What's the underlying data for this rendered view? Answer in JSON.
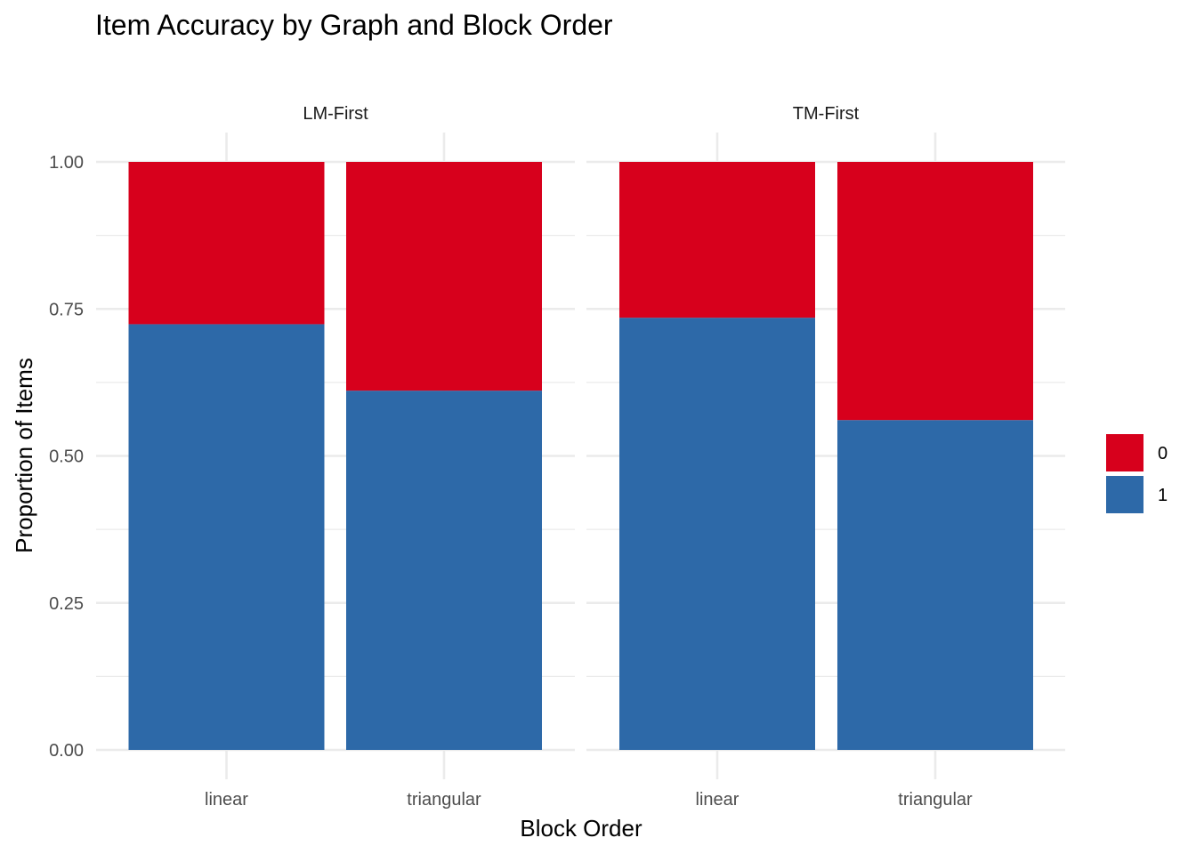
{
  "chart_data": {
    "type": "bar",
    "stacked": true,
    "position": "fill",
    "title": "Item Accuracy by Graph and Block Order",
    "xlabel": "Block Order",
    "ylabel": "Proportion of Items",
    "ylim": [
      0,
      1
    ],
    "yticks": [
      "0.00",
      "0.25",
      "0.50",
      "0.75",
      "1.00"
    ],
    "grid": true,
    "legend_position": "right",
    "categories": [
      "linear",
      "triangular"
    ],
    "panels": [
      {
        "label": "LM-First",
        "series": [
          {
            "name": "1",
            "values": [
              0.724,
              0.611
            ]
          },
          {
            "name": "0",
            "values": [
              0.276,
              0.389
            ]
          }
        ]
      },
      {
        "label": "TM-First",
        "series": [
          {
            "name": "1",
            "values": [
              0.735,
              0.561
            ]
          },
          {
            "name": "0",
            "values": [
              0.265,
              0.439
            ]
          }
        ]
      }
    ],
    "legend": [
      {
        "label": "0",
        "color": "#d7001c"
      },
      {
        "label": "1",
        "color": "#2d69a8"
      }
    ],
    "colors": {
      "0": "#d7001c",
      "1": "#2d69a8"
    }
  }
}
